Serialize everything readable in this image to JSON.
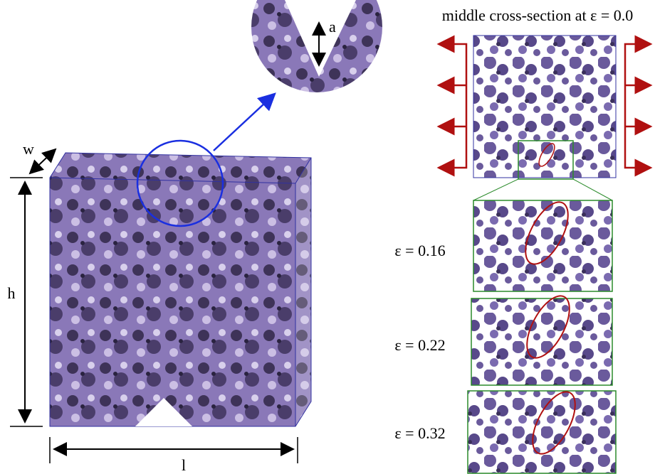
{
  "figure": {
    "title": "middle cross-section at ε = 0.0",
    "dimensions": {
      "w": "w",
      "h": "h",
      "l": "l",
      "a": "a"
    },
    "strain_labels": [
      "ε = 0.16",
      "ε = 0.22",
      "ε = 0.32"
    ]
  }
}
